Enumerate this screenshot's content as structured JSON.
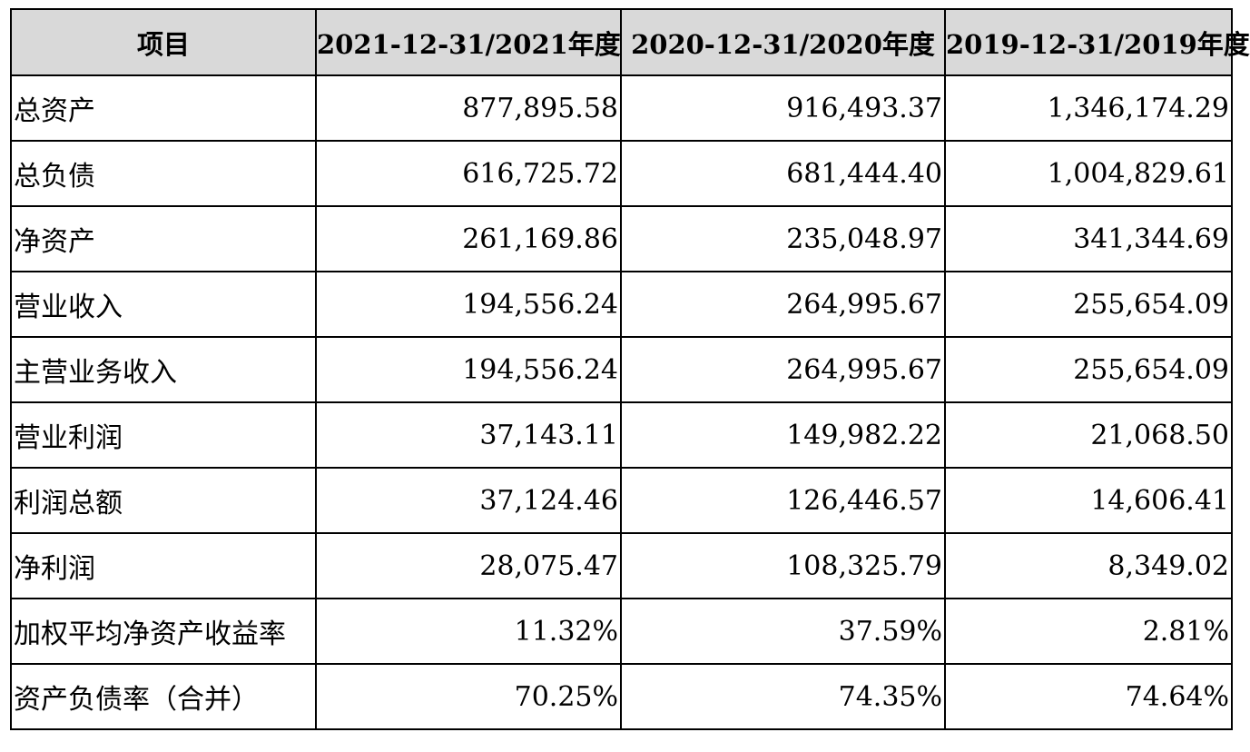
{
  "table": {
    "headers": [
      "项目",
      "2021-12-31/2021年度",
      "2020-12-31/2020年度",
      "2019-12-31/2019年度"
    ],
    "rows": [
      [
        "总资产",
        "877,895.58",
        "916,493.37",
        "1,346,174.29"
      ],
      [
        "总负债",
        "616,725.72",
        "681,444.40",
        "1,004,829.61"
      ],
      [
        "净资产",
        "261,169.86",
        "235,048.97",
        "341,344.69"
      ],
      [
        "营业收入",
        "194,556.24",
        "264,995.67",
        "255,654.09"
      ],
      [
        "主营业务收入",
        "194,556.24",
        "264,995.67",
        "255,654.09"
      ],
      [
        "营业利润",
        "37,143.11",
        "149,982.22",
        "21,068.50"
      ],
      [
        "利润总额",
        "37,124.46",
        "126,446.57",
        "14,606.41"
      ],
      [
        "净利润",
        "28,075.47",
        "108,325.79",
        "8,349.02"
      ],
      [
        "加权平均净资产收益率",
        "11.32%",
        "37.59%",
        "2.81%"
      ],
      [
        "资产负债率（合并）",
        "70.25%",
        "74.35%",
        "74.64%"
      ]
    ]
  },
  "colors": {
    "header_background": "#d9d9d9",
    "border": "#000000",
    "text": "#000000"
  }
}
